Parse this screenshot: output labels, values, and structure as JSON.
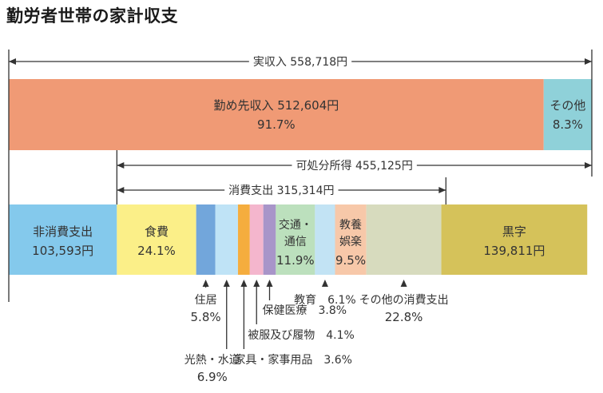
{
  "title": "勤労者世帯の家計収支",
  "chart_data": {
    "type": "bar",
    "unit": "円",
    "colors": {
      "kinmu": "#f09a75",
      "sonota_income": "#8fd1d9",
      "hishohi": "#84c9ec",
      "shokuhi": "#fbef88",
      "jukyo": "#72a6db",
      "kounetsu": "#bfe3f6",
      "kagu": "#f5ad3e",
      "hifuku": "#f4b6cd",
      "hoken": "#a895c9",
      "kotsu": "#bce0bd",
      "kyoiku": "#c2e3f4",
      "kyouraku": "#f7c8a9",
      "sonota_shohi": "#d7dbbe",
      "kuroji": "#d5c25a",
      "line": "#333333"
    },
    "income": {
      "total_label": "実収入 558,718円",
      "total_value": 558718,
      "segments": [
        {
          "key": "kinmu",
          "line1": "勤め先収入 512,604円",
          "line2": "91.7%",
          "value": 512604,
          "percent": 91.7
        },
        {
          "key": "sonota_income",
          "line1": "その他",
          "line2": "8.3%",
          "value": 46114,
          "percent": 8.3
        }
      ]
    },
    "disposable_label": "可処分所得 455,125円",
    "disposable_value": 455125,
    "consumption_label": "消費支出 315,314円",
    "consumption_value": 315314,
    "outgo": [
      {
        "key": "hishohi",
        "line1": "非消費支出",
        "line2": "103,593円",
        "value": 103593
      },
      {
        "key": "shokuhi",
        "line1": "食費",
        "line2": "24.1%",
        "percent": 24.1
      },
      {
        "key": "jukyo",
        "percent": 5.8
      },
      {
        "key": "kounetsu",
        "percent": 6.9
      },
      {
        "key": "kagu",
        "percent": 3.6
      },
      {
        "key": "hifuku",
        "percent": 4.1
      },
      {
        "key": "hoken",
        "percent": 3.8
      },
      {
        "key": "kotsu",
        "line1": "交通・",
        "line2": "通信",
        "line3": "11.9%",
        "percent": 11.9
      },
      {
        "key": "kyoiku",
        "percent": 6.1
      },
      {
        "key": "kyouraku",
        "line1": "教養",
        "line2": "娯楽",
        "line3": "9.5%",
        "percent": 9.5
      },
      {
        "key": "sonota_shohi",
        "percent": 22.8
      },
      {
        "key": "kuroji",
        "line1": "黒字",
        "line2": "139,811円",
        "value": 139811
      }
    ],
    "callouts": [
      {
        "key": "jukyo",
        "line1": "住居",
        "line2": "5.8%"
      },
      {
        "key": "kounetsu",
        "line1": "光熱・水道",
        "line2": "6.9%"
      },
      {
        "key": "kagu",
        "line1": "家具・家事用品　3.6%"
      },
      {
        "key": "hifuku",
        "line1": "被服及び履物　4.1%"
      },
      {
        "key": "hoken",
        "line1": "保健医療　3.8%"
      },
      {
        "key": "kyoiku",
        "line1": "教育　6.1%"
      },
      {
        "key": "sonota_shohi",
        "line1": "その他の消費支出",
        "line2": "22.8%"
      }
    ]
  }
}
